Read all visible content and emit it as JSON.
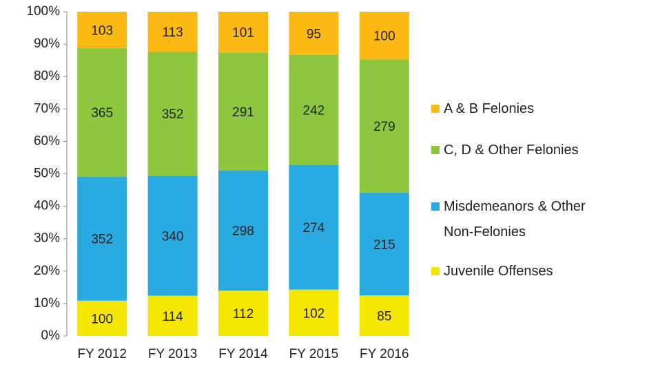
{
  "chart_data": {
    "type": "bar",
    "stacking": "percent",
    "categories": [
      "FY 2012",
      "FY 2013",
      "FY 2014",
      "FY 2015",
      "FY 2016"
    ],
    "series": [
      {
        "name": "Juvenile Offenses",
        "color": "#f5e700",
        "values": [
          100,
          114,
          112,
          102,
          85
        ]
      },
      {
        "name": "Misdemeanors & Other Non-Felonies",
        "color": "#29abe2",
        "values": [
          352,
          340,
          298,
          274,
          215
        ]
      },
      {
        "name": "C, D & Other Felonies",
        "color": "#8dc63f",
        "values": [
          365,
          352,
          291,
          242,
          279
        ]
      },
      {
        "name": "A & B Felonies",
        "color": "#fdb913",
        "values": [
          103,
          113,
          101,
          95,
          100
        ]
      }
    ],
    "ylim": [
      0,
      100
    ],
    "yticks": [
      {
        "value": 0,
        "label": "0%"
      },
      {
        "value": 10,
        "label": "10%"
      },
      {
        "value": 20,
        "label": "20%"
      },
      {
        "value": 30,
        "label": "30%"
      },
      {
        "value": 40,
        "label": "40%"
      },
      {
        "value": 50,
        "label": "50%"
      },
      {
        "value": 60,
        "label": "60%"
      },
      {
        "value": 70,
        "label": "70%"
      },
      {
        "value": 80,
        "label": "80%"
      },
      {
        "value": 90,
        "label": "90%"
      },
      {
        "value": 100,
        "label": "100%"
      }
    ],
    "grid": false,
    "legend": "right"
  }
}
